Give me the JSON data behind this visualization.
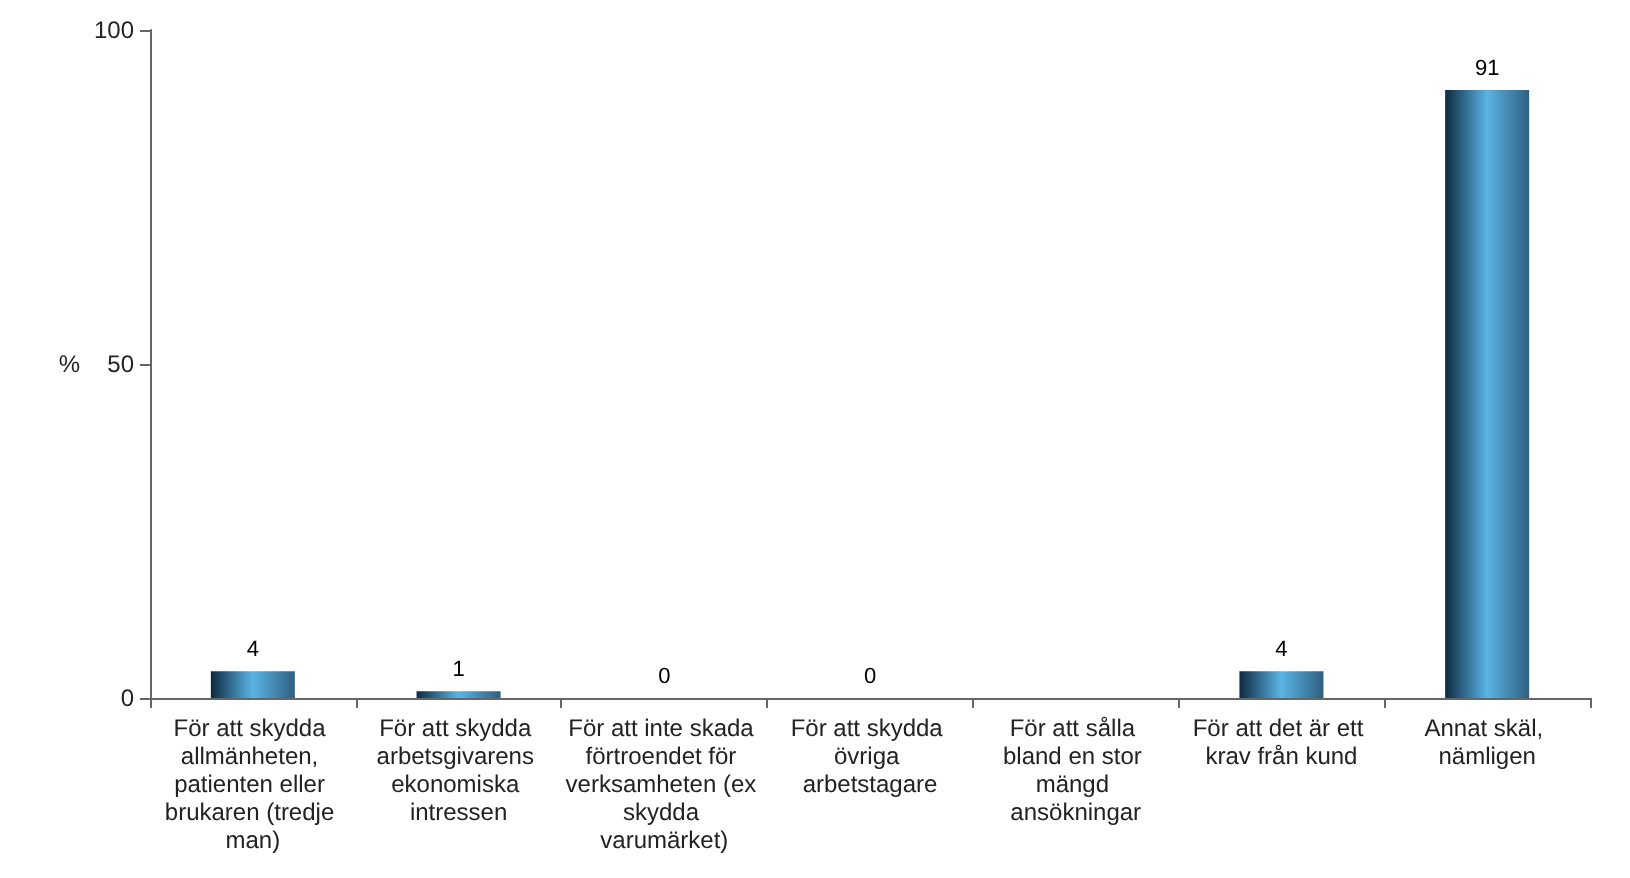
{
  "chart_data": {
    "type": "bar",
    "ylabel": "%",
    "categories": [
      "För att skydda allmänheten, patienten eller brukaren (tredje man)",
      "För att skydda arbetsgivarens ekonomiska intressen",
      "För att inte skada förtroendet för verksamheten (ex skydda varumärket)",
      "För att skydda övriga arbetstagare",
      "För att sålla bland en stor mängd ansökningar",
      "För att det är ett krav från kund",
      "Annat skäl, nämligen"
    ],
    "values": [
      4,
      1,
      0,
      0,
      null,
      4,
      91
    ],
    "color": "#5ab4e5",
    "ylim": [
      0,
      100
    ],
    "yticks": [
      0,
      50,
      100
    ],
    "data_labels": true,
    "grid": false
  }
}
